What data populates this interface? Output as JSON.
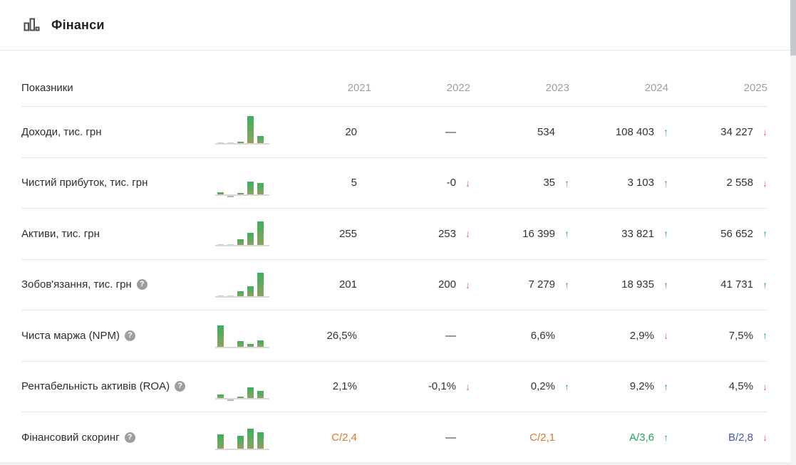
{
  "header": {
    "title": "Фінанси",
    "icon": "bar-chart-icon"
  },
  "colors": {
    "up": "#27ae60",
    "down": "#e16570",
    "score_c": "#d9782d",
    "score_a": "#27a15c",
    "score_b": "#4356b5",
    "value_default": "#2f3337"
  },
  "table": {
    "first_column_header": "Показники",
    "year_headers": [
      "2021",
      "2022",
      "2023",
      "2024",
      "2025"
    ],
    "rows": [
      {
        "label": "Доходи, тис. грн",
        "has_help_icon": false,
        "spark": [
          1,
          1,
          2,
          38,
          10
        ],
        "values": [
          {
            "text": "20"
          },
          {
            "text": "—"
          },
          {
            "text": "534"
          },
          {
            "text": "108 403",
            "arrow": "up"
          },
          {
            "text": "34 227",
            "arrow": "down"
          }
        ]
      },
      {
        "label": "Чистий прибуток, тис. грн",
        "has_help_icon": false,
        "spark": [
          3,
          -2,
          2,
          18,
          16
        ],
        "values": [
          {
            "text": "5"
          },
          {
            "text": "-0",
            "arrow": "down"
          },
          {
            "text": "35",
            "arrow": "up"
          },
          {
            "text": "3 103",
            "arrow": "up"
          },
          {
            "text": "2 558",
            "arrow": "down"
          }
        ]
      },
      {
        "label": "Активи, тис. грн",
        "has_help_icon": false,
        "spark": [
          1,
          1,
          8,
          17,
          33
        ],
        "values": [
          {
            "text": "255"
          },
          {
            "text": "253",
            "arrow": "down"
          },
          {
            "text": "16 399",
            "arrow": "up"
          },
          {
            "text": "33 821",
            "arrow": "up"
          },
          {
            "text": "56 652",
            "arrow": "up"
          }
        ]
      },
      {
        "label": "Зобов'язання, тис. грн",
        "has_help_icon": true,
        "spark": [
          1,
          1,
          7,
          14,
          33
        ],
        "values": [
          {
            "text": "201"
          },
          {
            "text": "200",
            "arrow": "down"
          },
          {
            "text": "7 279",
            "arrow": "up"
          },
          {
            "text": "18 935",
            "arrow": "up"
          },
          {
            "text": "41 731",
            "arrow": "up"
          }
        ]
      },
      {
        "label": "Чиста маржа (NPM)",
        "has_help_icon": true,
        "spark": [
          30,
          0,
          8,
          4,
          9
        ],
        "values": [
          {
            "text": "26,5%"
          },
          {
            "text": "—"
          },
          {
            "text": "6,6%"
          },
          {
            "text": "2,9%",
            "arrow": "down"
          },
          {
            "text": "7,5%",
            "arrow": "up"
          }
        ]
      },
      {
        "label": "Рентабельність активів (ROA)",
        "has_help_icon": true,
        "spark": [
          5,
          -2,
          2,
          15,
          10
        ],
        "values": [
          {
            "text": "2,1%"
          },
          {
            "text": "-0,1%",
            "arrow": "down"
          },
          {
            "text": "0,2%",
            "arrow": "up"
          },
          {
            "text": "9,2%",
            "arrow": "up"
          },
          {
            "text": "4,5%",
            "arrow": "down"
          }
        ]
      },
      {
        "label": "Фінансовий скоринг",
        "has_help_icon": true,
        "spark": [
          20,
          0,
          18,
          28,
          23
        ],
        "values": [
          {
            "text": "C/2,4",
            "color": "#d9782d"
          },
          {
            "text": "—"
          },
          {
            "text": "C/2,1",
            "color": "#d9782d"
          },
          {
            "text": "A/3,6",
            "color": "#27a15c",
            "arrow": "up"
          },
          {
            "text": "B/2,8",
            "color": "#4356b5",
            "arrow": "down"
          }
        ]
      }
    ]
  }
}
